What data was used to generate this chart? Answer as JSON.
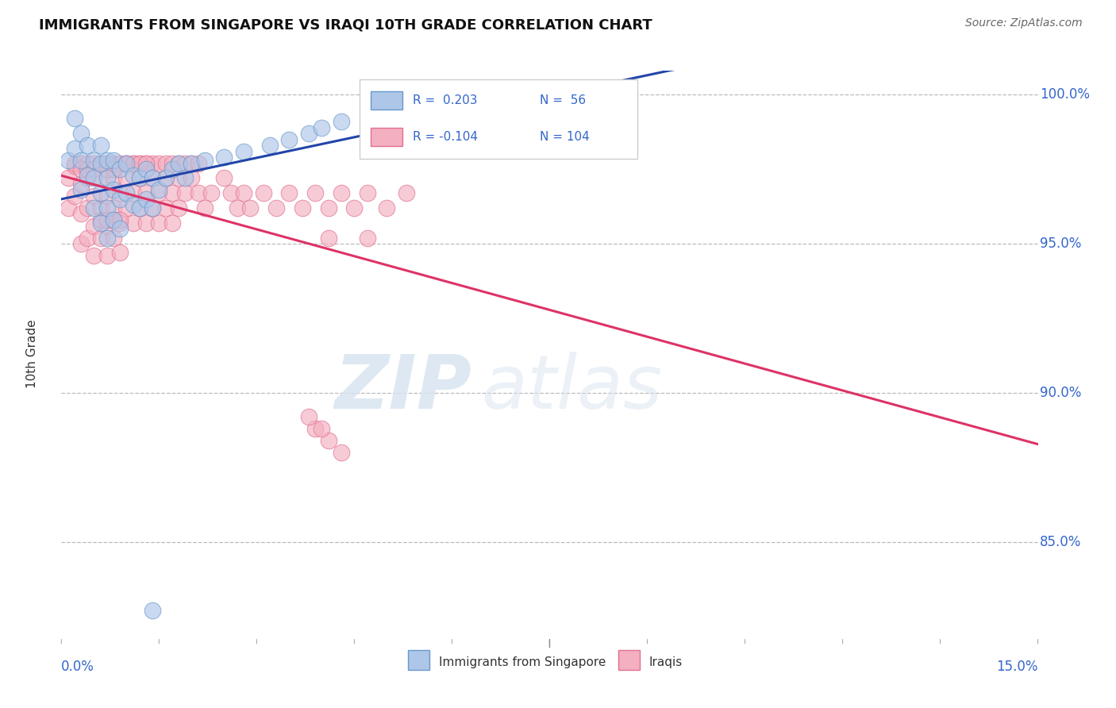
{
  "title": "IMMIGRANTS FROM SINGAPORE VS IRAQI 10TH GRADE CORRELATION CHART",
  "source": "Source: ZipAtlas.com",
  "ylabel": "10th Grade",
  "singapore_color": "#aec6e8",
  "iraq_color": "#f4afc0",
  "singapore_edge": "#6699cc",
  "iraq_edge": "#e07090",
  "trend_singapore_color": "#2244aa",
  "trend_iraq_color": "#dd3366",
  "singapore_label": "Immigrants from Singapore",
  "iraq_label": "Iraqis",
  "watermark_zip": "ZIP",
  "watermark_atlas": "atlas",
  "xlim": [
    0.0,
    0.15
  ],
  "ylim": [
    0.818,
    1.008
  ],
  "ytick_vals": [
    0.85,
    0.9,
    0.95,
    1.0
  ],
  "ytick_labels": [
    "85.0%",
    "90.0%",
    "95.0%",
    "100.0%"
  ],
  "legend_r1": "R =  0.203",
  "legend_n1": "N =  56",
  "legend_r2": "R = -0.104",
  "legend_n2": "N = 104",
  "sg_x": [
    0.001,
    0.002,
    0.002,
    0.003,
    0.003,
    0.003,
    0.004,
    0.004,
    0.005,
    0.005,
    0.005,
    0.006,
    0.006,
    0.006,
    0.006,
    0.007,
    0.007,
    0.007,
    0.007,
    0.008,
    0.008,
    0.008,
    0.009,
    0.009,
    0.009,
    0.01,
    0.01,
    0.011,
    0.011,
    0.012,
    0.012,
    0.013,
    0.013,
    0.014,
    0.014,
    0.015,
    0.016,
    0.017,
    0.018,
    0.019,
    0.02,
    0.022,
    0.025,
    0.028,
    0.032,
    0.035,
    0.038,
    0.04,
    0.043,
    0.05,
    0.055,
    0.06,
    0.065,
    0.07,
    0.075,
    0.014
  ],
  "sg_y": [
    0.978,
    0.982,
    0.992,
    0.987,
    0.978,
    0.968,
    0.983,
    0.973,
    0.978,
    0.972,
    0.962,
    0.983,
    0.977,
    0.967,
    0.957,
    0.978,
    0.972,
    0.962,
    0.952,
    0.978,
    0.968,
    0.958,
    0.975,
    0.965,
    0.955,
    0.977,
    0.967,
    0.973,
    0.963,
    0.972,
    0.962,
    0.975,
    0.965,
    0.972,
    0.962,
    0.968,
    0.972,
    0.975,
    0.977,
    0.972,
    0.977,
    0.978,
    0.979,
    0.981,
    0.983,
    0.985,
    0.987,
    0.989,
    0.991,
    0.993,
    0.995,
    0.996,
    0.997,
    0.998,
    0.999,
    0.827
  ],
  "iq_x": [
    0.001,
    0.001,
    0.002,
    0.002,
    0.003,
    0.003,
    0.003,
    0.004,
    0.004,
    0.004,
    0.005,
    0.005,
    0.005,
    0.006,
    0.006,
    0.006,
    0.007,
    0.007,
    0.007,
    0.008,
    0.008,
    0.008,
    0.009,
    0.009,
    0.009,
    0.01,
    0.01,
    0.011,
    0.011,
    0.012,
    0.012,
    0.013,
    0.013,
    0.014,
    0.014,
    0.015,
    0.015,
    0.016,
    0.016,
    0.017,
    0.017,
    0.018,
    0.018,
    0.019,
    0.02,
    0.021,
    0.022,
    0.023,
    0.025,
    0.026,
    0.027,
    0.028,
    0.029,
    0.031,
    0.033,
    0.035,
    0.037,
    0.039,
    0.041,
    0.043,
    0.045,
    0.047,
    0.05,
    0.053,
    0.041,
    0.047,
    0.006,
    0.007,
    0.008,
    0.009,
    0.002,
    0.003,
    0.004,
    0.005,
    0.006,
    0.007,
    0.008,
    0.009,
    0.01,
    0.011,
    0.012,
    0.013,
    0.014,
    0.015,
    0.016,
    0.017,
    0.018,
    0.019,
    0.02,
    0.021,
    0.01,
    0.011,
    0.012,
    0.013,
    0.003,
    0.004,
    0.005,
    0.007,
    0.008,
    0.039,
    0.041,
    0.043,
    0.038,
    0.04
  ],
  "iq_y": [
    0.972,
    0.962,
    0.976,
    0.966,
    0.97,
    0.96,
    0.95,
    0.972,
    0.962,
    0.952,
    0.966,
    0.956,
    0.946,
    0.972,
    0.962,
    0.952,
    0.966,
    0.956,
    0.946,
    0.972,
    0.962,
    0.952,
    0.967,
    0.957,
    0.947,
    0.972,
    0.962,
    0.967,
    0.957,
    0.972,
    0.962,
    0.967,
    0.957,
    0.972,
    0.962,
    0.967,
    0.957,
    0.972,
    0.962,
    0.967,
    0.957,
    0.972,
    0.962,
    0.967,
    0.972,
    0.967,
    0.962,
    0.967,
    0.972,
    0.967,
    0.962,
    0.967,
    0.962,
    0.967,
    0.962,
    0.967,
    0.962,
    0.967,
    0.962,
    0.967,
    0.962,
    0.967,
    0.962,
    0.967,
    0.952,
    0.952,
    0.958,
    0.958,
    0.958,
    0.958,
    0.977,
    0.977,
    0.977,
    0.977,
    0.977,
    0.977,
    0.977,
    0.977,
    0.977,
    0.977,
    0.977,
    0.977,
    0.977,
    0.977,
    0.977,
    0.977,
    0.977,
    0.977,
    0.977,
    0.977,
    0.977,
    0.977,
    0.977,
    0.977,
    0.975,
    0.975,
    0.975,
    0.975,
    0.975,
    0.888,
    0.884,
    0.88,
    0.892,
    0.888
  ]
}
